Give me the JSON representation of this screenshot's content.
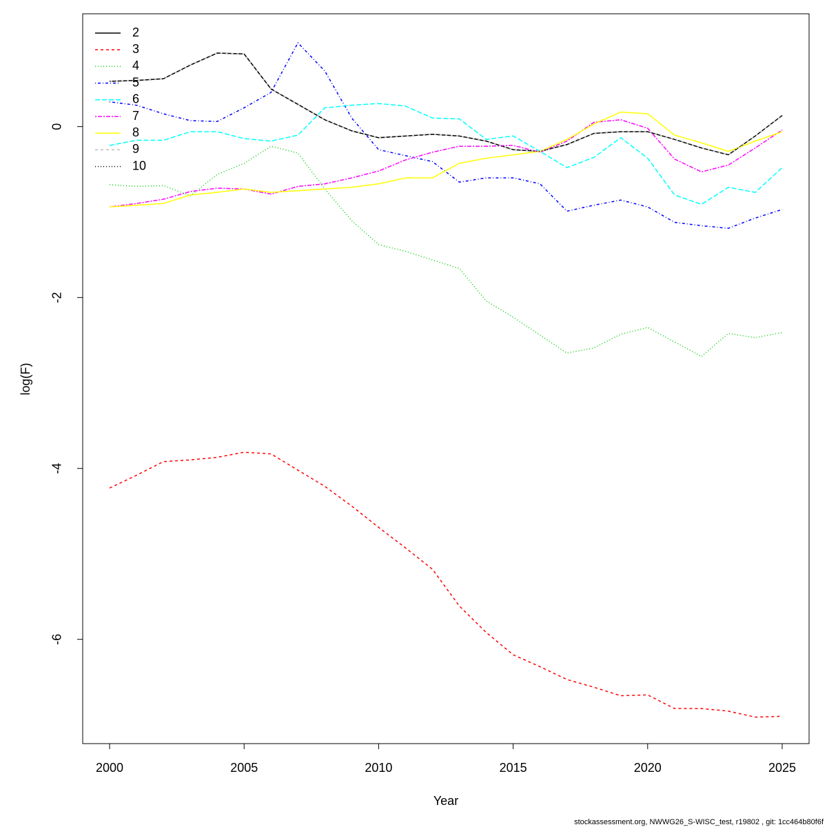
{
  "chart_data": {
    "type": "line",
    "x_label": "Year",
    "y_label": "log(F)",
    "footer": "stockassessment.org, NWWG26_S-WISC_test, r19802 , git: 1cc464b80f6f",
    "x": [
      2000,
      2001,
      2002,
      2003,
      2004,
      2005,
      2006,
      2007,
      2008,
      2009,
      2010,
      2011,
      2012,
      2013,
      2014,
      2015,
      2016,
      2017,
      2018,
      2019,
      2020,
      2021,
      2022,
      2023,
      2024,
      2025
    ],
    "xlim": [
      1999,
      2026
    ],
    "ylim": [
      -7.22,
      1.32
    ],
    "xticks": [
      2000,
      2005,
      2010,
      2015,
      2020,
      2025
    ],
    "yticks": [
      -6,
      -4,
      -2,
      0
    ],
    "legend": "top-left",
    "series": [
      {
        "name": "2",
        "color": "#000000",
        "dash": "none",
        "values": [
          0.53,
          0.54,
          0.56,
          0.72,
          0.86,
          0.85,
          0.44,
          0.26,
          0.08,
          -0.05,
          -0.13,
          -0.11,
          -0.09,
          -0.11,
          -0.17,
          -0.27,
          -0.29,
          -0.21,
          -0.08,
          -0.06,
          -0.06,
          -0.15,
          -0.25,
          -0.33,
          -0.11,
          0.13
        ]
      },
      {
        "name": "3",
        "color": "#ff0000",
        "dash": "4,4",
        "values": [
          -4.23,
          -4.08,
          -3.92,
          -3.9,
          -3.87,
          -3.81,
          -3.83,
          -4.02,
          -4.21,
          -4.44,
          -4.69,
          -4.93,
          -5.18,
          -5.61,
          -5.92,
          -6.18,
          -6.32,
          -6.47,
          -6.56,
          -6.66,
          -6.65,
          -6.81,
          -6.81,
          -6.84,
          -6.91,
          -6.9
        ]
      },
      {
        "name": "4",
        "color": "#00cd00",
        "dash": "1,3",
        "values": [
          -0.68,
          -0.7,
          -0.69,
          -0.81,
          -0.56,
          -0.43,
          -0.23,
          -0.31,
          -0.73,
          -1.1,
          -1.38,
          -1.46,
          -1.56,
          -1.66,
          -2.04,
          -2.23,
          -2.44,
          -2.65,
          -2.59,
          -2.43,
          -2.35,
          -2.52,
          -2.69,
          -2.42,
          -2.47,
          -2.41
        ]
      },
      {
        "name": "5",
        "color": "#0000ff",
        "dash": "1,3,4,3",
        "values": [
          0.29,
          0.25,
          0.15,
          0.07,
          0.06,
          0.22,
          0.4,
          0.98,
          0.65,
          0.1,
          -0.27,
          -0.34,
          -0.41,
          -0.65,
          -0.6,
          -0.6,
          -0.67,
          -0.99,
          -0.92,
          -0.86,
          -0.94,
          -1.12,
          -1.16,
          -1.19,
          -1.07,
          -0.97
        ]
      },
      {
        "name": "6",
        "color": "#00ffff",
        "dash": "7,3",
        "values": [
          -0.22,
          -0.16,
          -0.16,
          -0.06,
          -0.06,
          -0.14,
          -0.17,
          -0.1,
          0.22,
          0.25,
          0.27,
          0.24,
          0.1,
          0.09,
          -0.15,
          -0.11,
          -0.29,
          -0.48,
          -0.36,
          -0.13,
          -0.37,
          -0.8,
          -0.91,
          -0.71,
          -0.77,
          -0.48
        ]
      },
      {
        "name": "7",
        "color": "#ff00ff",
        "dash": "2,2,6,2",
        "values": [
          -0.94,
          -0.9,
          -0.85,
          -0.76,
          -0.72,
          -0.73,
          -0.79,
          -0.7,
          -0.67,
          -0.6,
          -0.52,
          -0.39,
          -0.3,
          -0.23,
          -0.23,
          -0.22,
          -0.3,
          -0.17,
          0.05,
          0.08,
          -0.02,
          -0.38,
          -0.53,
          -0.45,
          -0.25,
          -0.04
        ]
      },
      {
        "name": "8",
        "color": "#ffff00",
        "dash": "none",
        "values": [
          -0.94,
          -0.92,
          -0.9,
          -0.8,
          -0.77,
          -0.73,
          -0.77,
          -0.75,
          -0.73,
          -0.71,
          -0.67,
          -0.6,
          -0.6,
          -0.43,
          -0.37,
          -0.33,
          -0.29,
          -0.15,
          0.03,
          0.17,
          0.15,
          -0.1,
          -0.19,
          -0.29,
          -0.17,
          -0.06
        ]
      },
      {
        "name": "9",
        "color": "#bebebe",
        "dash": "4,4",
        "values": [
          0.53,
          0.54,
          0.56,
          0.72,
          0.86,
          0.85,
          0.44,
          0.26,
          0.08,
          -0.05,
          -0.13,
          -0.11,
          -0.09,
          -0.11,
          -0.17,
          -0.27,
          -0.29,
          -0.21,
          -0.08,
          -0.06,
          -0.06,
          -0.15,
          -0.25,
          -0.33,
          -0.11,
          0.13
        ]
      },
      {
        "name": "10",
        "color": "#000000",
        "dash": "1,3",
        "values": [
          0.53,
          0.54,
          0.56,
          0.72,
          0.86,
          0.85,
          0.44,
          0.26,
          0.08,
          -0.05,
          -0.13,
          -0.11,
          -0.09,
          -0.11,
          -0.17,
          -0.27,
          -0.29,
          -0.21,
          -0.08,
          -0.06,
          -0.06,
          -0.15,
          -0.25,
          -0.33,
          -0.11,
          0.13
        ]
      }
    ]
  }
}
